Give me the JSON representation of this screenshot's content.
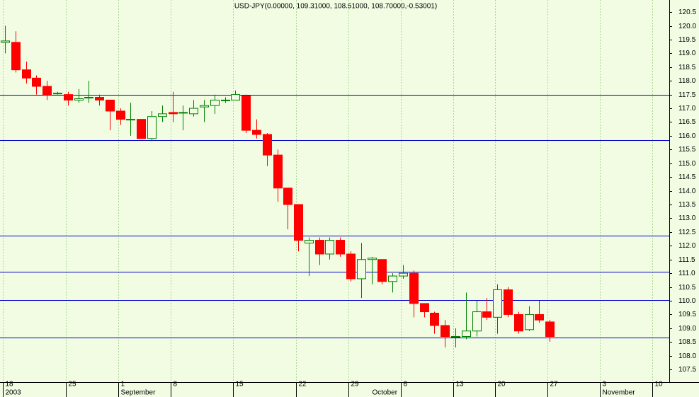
{
  "chart_data": {
    "type": "candlestick",
    "title": "USD-JPY(0.00000, 109.31000, 108.51000, 108.70000,-0.53001)",
    "categories": [
      "18",
      null,
      null,
      null,
      null,
      null,
      "25",
      null,
      null,
      null,
      null,
      "1",
      null,
      null,
      null,
      null,
      "8",
      null,
      null,
      null,
      null,
      null,
      "15",
      null,
      null,
      null,
      null,
      null,
      "22",
      null,
      null,
      null,
      null,
      "29",
      null,
      null,
      null,
      null,
      "6",
      null,
      null,
      null,
      null,
      "13",
      null,
      null,
      null,
      "20",
      null,
      null,
      null,
      null,
      "27",
      null,
      null,
      null,
      null,
      "3",
      null,
      null,
      null,
      null,
      "10",
      null
    ],
    "months": [
      "2003",
      null,
      null,
      null,
      null,
      null,
      null,
      null,
      null,
      null,
      null,
      "September",
      null,
      null,
      null,
      null,
      null,
      null,
      null,
      null,
      null,
      null,
      null,
      null,
      null,
      null,
      null,
      null,
      null,
      null,
      null,
      null,
      null,
      null,
      null,
      "October",
      null,
      null,
      null,
      null,
      null,
      null,
      null,
      null,
      null,
      null,
      null,
      null,
      null,
      null,
      null,
      null,
      null,
      null,
      null,
      null,
      null,
      "November",
      null,
      null,
      null,
      null,
      null,
      null
    ],
    "open": [
      119.4,
      119.4,
      118.4,
      118.1,
      117.8,
      117.55,
      117.5,
      117.3,
      117.4,
      117.4,
      117.3,
      116.9,
      116.6,
      116.6,
      115.9,
      116.7,
      116.85,
      116.85,
      116.8,
      117.05,
      117.1,
      117.3,
      117.3,
      117.45,
      116.2,
      116.05,
      115.3,
      114.1,
      113.5,
      112.1,
      112.2,
      111.7,
      112.2,
      111.7,
      110.8,
      111.5,
      111.5,
      110.7,
      110.9,
      111.0,
      109.9,
      109.55,
      109.1,
      108.7,
      108.7,
      108.9,
      109.6,
      109.4,
      110.4,
      109.5,
      108.95,
      109.5,
      109.23,
      null,
      null,
      null,
      null,
      null,
      null,
      null,
      null,
      null,
      null,
      null
    ],
    "high": [
      120.0,
      119.8,
      118.7,
      118.2,
      118.0,
      117.6,
      117.6,
      117.7,
      118.0,
      117.5,
      117.3,
      117.0,
      117.2,
      116.6,
      116.9,
      117.1,
      117.6,
      117.1,
      117.3,
      117.3,
      117.5,
      117.4,
      117.65,
      117.5,
      116.6,
      116.1,
      115.5,
      114.1,
      113.5,
      112.3,
      112.3,
      112.3,
      112.3,
      111.8,
      112.1,
      111.6,
      111.5,
      111.0,
      111.3,
      111.1,
      109.9,
      109.6,
      109.3,
      109.0,
      110.3,
      110.0,
      110.1,
      110.6,
      110.5,
      109.6,
      109.8,
      110.0,
      109.31,
      null,
      null,
      null,
      null,
      null,
      null,
      null,
      null,
      null,
      null,
      null
    ],
    "low": [
      119.0,
      118.3,
      117.9,
      117.5,
      117.3,
      117.5,
      117.1,
      117.2,
      117.2,
      117.1,
      116.2,
      116.4,
      116.0,
      115.9,
      115.8,
      116.5,
      116.5,
      116.2,
      116.7,
      116.5,
      116.8,
      117.2,
      117.3,
      116.1,
      115.9,
      114.9,
      113.6,
      112.6,
      111.8,
      110.9,
      111.3,
      111.5,
      111.6,
      110.7,
      110.1,
      110.6,
      110.6,
      110.3,
      110.8,
      109.4,
      109.4,
      108.8,
      108.3,
      108.3,
      108.6,
      108.7,
      109.3,
      108.8,
      109.4,
      108.8,
      108.9,
      109.2,
      108.51,
      null,
      null,
      null,
      null,
      null,
      null,
      null,
      null,
      null,
      null,
      null
    ],
    "close": [
      119.45,
      118.4,
      118.1,
      117.8,
      117.5,
      117.55,
      117.3,
      117.35,
      117.4,
      117.3,
      116.9,
      116.6,
      116.6,
      115.9,
      116.7,
      116.8,
      116.8,
      116.85,
      117.0,
      117.1,
      117.3,
      117.3,
      117.5,
      116.2,
      116.05,
      115.3,
      114.1,
      113.5,
      112.2,
      112.2,
      111.7,
      112.2,
      111.7,
      110.8,
      111.5,
      111.55,
      110.7,
      110.9,
      111.0,
      109.9,
      109.6,
      109.1,
      108.7,
      108.7,
      108.9,
      109.6,
      109.4,
      110.4,
      109.5,
      108.9,
      109.5,
      109.3,
      108.7,
      null,
      null,
      null,
      null,
      null,
      null,
      null,
      null,
      null,
      null,
      null
    ],
    "up_color": "#008000",
    "down_color": "#ff0000",
    "hlines": [
      117.5,
      115.85,
      112.37,
      111.05,
      110.02,
      108.66
    ],
    "hline_color": "#0000cc",
    "ylim": [
      107.04,
      120.94
    ],
    "yticks": [
      107.5,
      {
        "value": 108,
        "label": "108.0"
      },
      108.5,
      {
        "value": 109,
        "label": "109.0"
      },
      109.5,
      {
        "value": 110,
        "label": "110.0"
      },
      110.5,
      {
        "value": 111,
        "label": "111.0"
      },
      111.5,
      {
        "value": 112,
        "label": "112.0"
      },
      112.5,
      {
        "value": 113,
        "label": "113.0"
      },
      113.5,
      {
        "value": 114,
        "label": "114.0"
      },
      114.5,
      {
        "value": 115,
        "label": "115.0"
      },
      115.5,
      {
        "value": 116,
        "label": "116.0"
      },
      116.5,
      {
        "value": 117,
        "label": "117.0"
      },
      117.5,
      {
        "value": 118,
        "label": "118.0"
      },
      118.5,
      {
        "value": 119,
        "label": "119.0"
      },
      119.5,
      {
        "value": 120,
        "label": "120.0"
      },
      120.5
    ],
    "grid": true
  }
}
